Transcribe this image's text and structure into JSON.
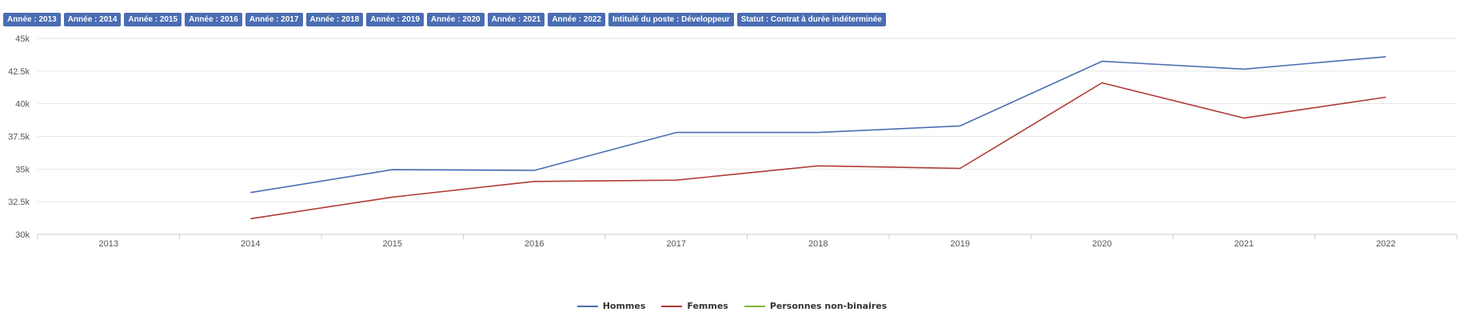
{
  "filters": [
    "Année : 2013",
    "Année : 2014",
    "Année : 2015",
    "Année : 2016",
    "Année : 2017",
    "Année : 2018",
    "Année : 2019",
    "Année : 2020",
    "Année : 2021",
    "Année : 2022",
    "Intitulé du poste : Développeur",
    "Statut : Contrat à durée indéterminée"
  ],
  "colors": {
    "chip": "#4a6db3",
    "grid": "#e6e6e6",
    "axis": "#cccccc"
  },
  "chart_data": {
    "type": "line",
    "x": [
      "2013",
      "2014",
      "2015",
      "2016",
      "2017",
      "2018",
      "2019",
      "2020",
      "2021",
      "2022"
    ],
    "ylim": [
      30000,
      45000
    ],
    "yticks": [
      30000,
      32500,
      35000,
      37500,
      40000,
      42500,
      45000
    ],
    "ytick_labels": [
      "30k",
      "32.5k",
      "35k",
      "37.5k",
      "40k",
      "42.5k",
      "45k"
    ],
    "grid": true,
    "legend_position": "bottom-center",
    "series": [
      {
        "name": "Hommes",
        "color": "#4a6db3",
        "values": [
          null,
          33200,
          34950,
          34900,
          37800,
          37800,
          38300,
          43250,
          42650,
          43600
        ]
      },
      {
        "name": "Femmes",
        "color": "#b03a36",
        "values": [
          null,
          31200,
          32850,
          34050,
          34150,
          35250,
          35050,
          41600,
          38900,
          40500
        ]
      },
      {
        "name": "Personnes non-binaires",
        "color": "#7db33c",
        "values": [
          null,
          null,
          null,
          null,
          null,
          null,
          null,
          null,
          null,
          null
        ]
      }
    ]
  }
}
